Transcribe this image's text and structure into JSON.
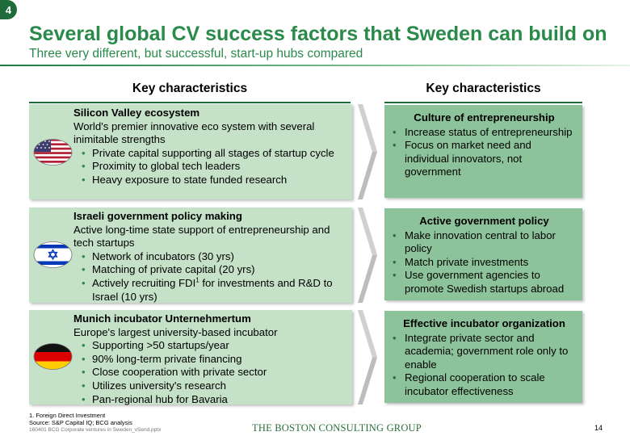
{
  "slide": {
    "number": "4"
  },
  "header": {
    "title": "Several global CV success factors that Sweden can build on",
    "subtitle": "Three very different, but successful, start-up hubs compared"
  },
  "columns": {
    "left_heading": "Key characteristics",
    "right_heading": "Key characteristics"
  },
  "hubs": [
    {
      "title": "Silicon Valley ecosystem",
      "description": "World's premier innovative eco system with several inimitable strengths",
      "bullets": [
        "Private capital supporting all stages of startup cycle",
        "Proximity to global tech leaders",
        "Heavy exposure to state funded research"
      ],
      "flag": "usa-flag-icon"
    },
    {
      "title": "Israeli government policy making",
      "description": "Active long-time state support of entrepreneurship and tech startups",
      "bullets": [
        "Network of incubators (30 yrs)",
        "Matching of private capital (20 yrs)"
      ],
      "bullet_fdi": {
        "before": "Actively recruiting FDI",
        "sup": "1",
        "after": " for investments and R&D to Israel (10 yrs)"
      },
      "flag": "israel-flag-icon"
    },
    {
      "title": "Munich incubator Unternehmertum",
      "description": "Europe's largest university-based incubator",
      "bullets": [
        "Supporting >50 startups/year",
        "90% long-term private financing",
        "Close cooperation with private sector",
        "Utilizes university's research",
        "Pan-regional hub for Bavaria"
      ],
      "flag": "germany-flag-icon"
    }
  ],
  "takeaways": [
    {
      "title": "Culture of entrepreneurship",
      "bullets": [
        "Increase status of entrepreneurship",
        "Focus on market need and individual innovators, not government"
      ]
    },
    {
      "title": "Active government policy",
      "bullets": [
        "Make innovation central to labor policy",
        "Match private investments",
        "Use government agencies to promote Swedish startups abroad"
      ]
    },
    {
      "title": "Effective incubator organization",
      "bullets": [
        "Integrate private sector and academia; government role only to enable",
        "Regional cooperation to scale incubator effectiveness"
      ]
    }
  ],
  "footer": {
    "footnote": "1. Foreign Direct Investment",
    "source": "Source: S&P Capital IQ; BCG analysis",
    "filename": "160401 BCG Corporate ventures in Sweden_vSend.pptx",
    "brand": "THE BOSTON CONSULTING GROUP",
    "page": "14"
  },
  "colors": {
    "title_green": "#2a8a4a",
    "light_box": "#c5e1c8",
    "dark_box": "#8dc39a",
    "rule_green": "#1f6b3a"
  }
}
